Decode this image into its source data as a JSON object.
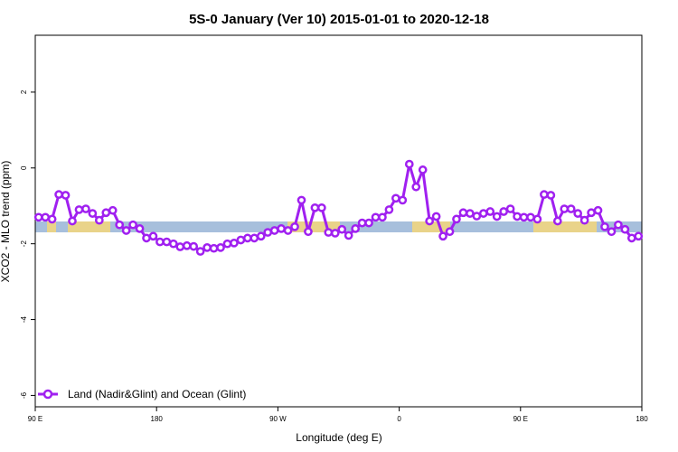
{
  "chart_data": {
    "type": "line",
    "title": "5S-0 January (Ver 10)   2015-01-01 to 2020-12-18",
    "xlabel": "Longitude (deg E)",
    "ylabel": "XCO2 - MLO trend (ppm)",
    "xlim": [
      90,
      450
    ],
    "ylim": [
      -6.3,
      3.5
    ],
    "x_ticks": [
      {
        "value": 90,
        "label": "90 E"
      },
      {
        "value": 162,
        "label": "180"
      },
      {
        "value": 234,
        "label": "90 W"
      },
      {
        "value": 306,
        "label": "0"
      },
      {
        "value": 378,
        "label": "90 E"
      },
      {
        "value": 450,
        "label": "180"
      }
    ],
    "y_ticks": [
      2,
      0,
      -2,
      -4,
      -6
    ],
    "grid": false,
    "legend_position": "bottom-left",
    "series": [
      {
        "name": "Land (Nadir&Glint) and Ocean (Glint)",
        "color": "#a020f0",
        "x": [
          92.0,
          96.0,
          100.0,
          104.0,
          108.0,
          112.0,
          116.0,
          120.0,
          124.0,
          128.0,
          132.0,
          136.0,
          140.0,
          144.0,
          148.0,
          152.0,
          156.0,
          160.0,
          164.0,
          168.0,
          172.0,
          176.0,
          180.0,
          184.0,
          188.0,
          192.0,
          196.0,
          200.0,
          204.0,
          208.0,
          212.0,
          216.0,
          220.0,
          224.0,
          228.0,
          232.0,
          236.0,
          240.0,
          244.0,
          248.0,
          252.0,
          256.0,
          260.0,
          264.0,
          268.0,
          272.0,
          276.0,
          280.0,
          284.0,
          288.0,
          292.0,
          296.0,
          300.0,
          304.0,
          308.0,
          312.0,
          316.0,
          320.0,
          324.0,
          328.0,
          332.0,
          336.0,
          340.0,
          344.0,
          348.0,
          352.0,
          356.0,
          360.0,
          364.0,
          368.0,
          372.0,
          376.0,
          380.0,
          384.0,
          388.0,
          392.0,
          396.0,
          400.0,
          404.0,
          408.0,
          412.0,
          416.0,
          420.0,
          424.0,
          428.0,
          432.0,
          436.0,
          440.0,
          444.0,
          448.0
        ],
        "values": [
          -1.3,
          -1.3,
          -1.35,
          -0.7,
          -0.72,
          -1.4,
          -1.1,
          -1.08,
          -1.2,
          -1.38,
          -1.18,
          -1.12,
          -1.5,
          -1.65,
          -1.5,
          -1.6,
          -1.85,
          -1.8,
          -1.95,
          -1.95,
          -2.0,
          -2.08,
          -2.05,
          -2.07,
          -2.2,
          -2.1,
          -2.12,
          -2.1,
          -2.0,
          -1.98,
          -1.9,
          -1.85,
          -1.85,
          -1.8,
          -1.7,
          -1.65,
          -1.6,
          -1.65,
          -1.55,
          -0.85,
          -1.68,
          -1.05,
          -1.05,
          -1.7,
          -1.72,
          -1.62,
          -1.78,
          -1.6,
          -1.45,
          -1.45,
          -1.3,
          -1.3,
          -1.1,
          -0.8,
          -0.85,
          0.1,
          -0.5,
          -0.05,
          -1.4,
          -1.28,
          -1.8,
          -1.68,
          -1.35,
          -1.18,
          -1.2,
          -1.27,
          -1.2,
          -1.15,
          -1.28,
          -1.15,
          -1.08,
          -1.28,
          -1.3,
          -1.3,
          -1.35,
          -0.7,
          -0.72,
          -1.4,
          -1.08,
          -1.08,
          -1.2,
          -1.38,
          -1.18,
          -1.12,
          -1.55,
          -1.68,
          -1.5,
          -1.62,
          -1.85,
          -1.8
        ]
      }
    ]
  }
}
